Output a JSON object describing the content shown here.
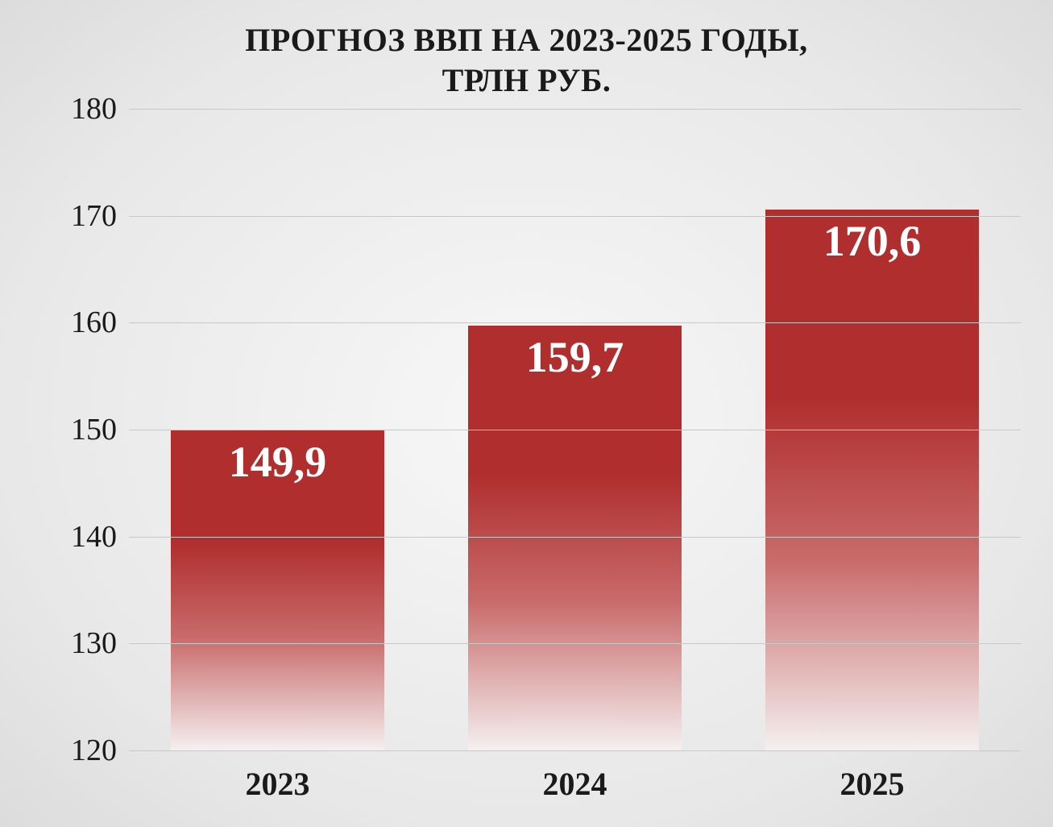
{
  "chart": {
    "type": "bar",
    "title_line1": "ПРОГНОЗ ВВП НА 2023-2025 ГОДЫ,",
    "title_line2": "ТРЛН РУБ.",
    "title_fontsize": 40,
    "title_color": "#1a1a1a",
    "categories": [
      "2023",
      "2024",
      "2025"
    ],
    "values": [
      149.9,
      159.7,
      170.6
    ],
    "value_labels": [
      "149,9",
      "159,7",
      "170,6"
    ],
    "ymin": 120,
    "ymax": 180,
    "ytick_step": 10,
    "yticks": [
      120,
      130,
      140,
      150,
      160,
      170,
      180
    ],
    "bar_width_pct": 72,
    "bar_color_top": "#b02e2e",
    "bar_color_bottom": "#f5f0f0",
    "grid_color": "#c8c8c8",
    "background_gradient_inner": "#f7f7f7",
    "background_gradient_outer": "#dcdcdc",
    "axis_label_fontsize": 38,
    "axis_label_color": "#1a1a1a",
    "x_label_fontsize": 40,
    "x_label_fontweight": "bold",
    "data_label_fontsize": 54,
    "data_label_color": "#ffffff"
  }
}
